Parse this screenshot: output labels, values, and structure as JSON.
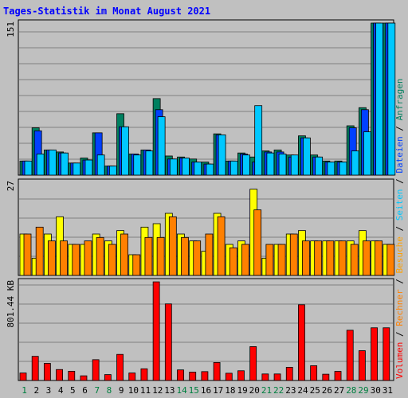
{
  "title": "Tages-Statistik im Monat August 2021",
  "chart_data": [
    {
      "type": "bar",
      "panel": "hits",
      "y_max_label": "151",
      "ylim": [
        0,
        151
      ],
      "series": [
        {
          "name": "Anfragen",
          "color": "#008060",
          "values": [
            14,
            47,
            25,
            23,
            12,
            17,
            42,
            9,
            61,
            21,
            25,
            76,
            19,
            18,
            16,
            13,
            41,
            14,
            22,
            18,
            24,
            25,
            20,
            39,
            20,
            14,
            14,
            49,
            67,
            151,
            151
          ]
        },
        {
          "name": "Dateien",
          "color": "#0040ff",
          "values": [
            14,
            44,
            25,
            22,
            12,
            15,
            42,
            9,
            48,
            21,
            25,
            65,
            16,
            17,
            13,
            11,
            40,
            14,
            21,
            13,
            23,
            23,
            18,
            37,
            18,
            13,
            13,
            47,
            65,
            151,
            151
          ]
        },
        {
          "name": "Seiten",
          "color": "#00c8ff",
          "values": [
            14,
            21,
            25,
            22,
            12,
            15,
            20,
            9,
            48,
            20,
            24,
            58,
            16,
            17,
            13,
            11,
            40,
            14,
            20,
            69,
            22,
            21,
            20,
            37,
            18,
            13,
            13,
            24,
            43,
            151,
            151
          ]
        }
      ]
    },
    {
      "type": "bar",
      "panel": "visits",
      "y_max_label": "27",
      "ylim": [
        0,
        27
      ],
      "series": [
        {
          "name": "Besuche",
          "color": "#ffff00",
          "values": [
            12,
            5,
            12,
            17,
            9,
            9,
            12,
            10,
            13,
            6,
            14,
            15,
            18,
            12,
            10,
            7,
            18,
            9,
            10,
            25,
            5,
            9,
            12,
            13,
            10,
            10,
            10,
            10,
            13,
            10,
            9
          ]
        },
        {
          "name": "Rechner",
          "color": "#ff8000",
          "values": [
            12,
            14,
            10,
            10,
            9,
            10,
            11,
            9,
            12,
            6,
            11,
            11,
            17,
            11,
            10,
            12,
            17,
            8,
            9,
            19,
            9,
            9,
            12,
            10,
            10,
            10,
            10,
            9,
            10,
            10,
            9
          ]
        }
      ]
    },
    {
      "type": "bar",
      "panel": "volume",
      "y_max_label": "801.44 KB",
      "ylim": [
        0,
        801.44
      ],
      "series": [
        {
          "name": "Volumen",
          "color": "#ff0000",
          "values": [
            61,
            196,
            139,
            89,
            75,
            38,
            169,
            48,
            212,
            61,
            95,
            801,
            622,
            86,
            68,
            72,
            146,
            59,
            79,
            275,
            53,
            53,
            107,
            615,
            120,
            51,
            74,
            408,
            242,
            428,
            428
          ]
        }
      ]
    }
  ],
  "x_labels": [
    "1",
    "2",
    "3",
    "4",
    "5",
    "6",
    "7",
    "8",
    "9",
    "10",
    "11",
    "12",
    "13",
    "14",
    "15",
    "16",
    "17",
    "18",
    "19",
    "20",
    "21",
    "22",
    "23",
    "24",
    "25",
    "26",
    "27",
    "28",
    "29",
    "30",
    "31"
  ],
  "weekend_days": [
    1,
    7,
    8,
    14,
    15,
    21,
    22,
    28,
    29
  ],
  "legend_right": [
    {
      "text": "Volumen",
      "color": "#ff0000"
    },
    {
      "text": " / ",
      "color": "#000000"
    },
    {
      "text": "Rechner",
      "color": "#ff8000"
    },
    {
      "text": " / ",
      "color": "#000000"
    },
    {
      "text": "Besuche",
      "color": "#ffa000"
    },
    {
      "text": " / ",
      "color": "#000000"
    },
    {
      "text": "Seiten",
      "color": "#00c8ff"
    },
    {
      "text": " / ",
      "color": "#000000"
    },
    {
      "text": "Dateien",
      "color": "#0040ff"
    },
    {
      "text": " / ",
      "color": "#000000"
    },
    {
      "text": "Anfragen",
      "color": "#008060"
    }
  ]
}
